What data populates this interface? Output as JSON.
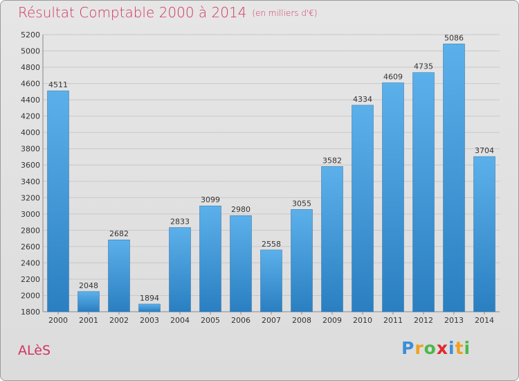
{
  "header": {
    "title": "Résultat Comptable 2000 à 2014",
    "subtitle": "(en milliers d'€)"
  },
  "footer": {
    "city": "ALèS",
    "logo": [
      "P",
      "r",
      "o",
      "x",
      "i",
      "t",
      "i"
    ]
  },
  "colors": {
    "title": "#d2355f",
    "bar_top": "#5cb0ea",
    "bar_bottom": "#2a7fc1",
    "grid": "#c8c8c8",
    "logo": [
      "#3a8fd8",
      "#f0a020",
      "#4cb848",
      "#e0282e",
      "#3a8fd8",
      "#f0a020",
      "#4cb848"
    ]
  },
  "chart_data": {
    "type": "bar",
    "title": "Résultat Comptable 2000 à 2014",
    "subtitle": "(en milliers d'€)",
    "categories": [
      "2000",
      "2001",
      "2002",
      "2003",
      "2004",
      "2005",
      "2006",
      "2007",
      "2008",
      "2009",
      "2010",
      "2011",
      "2012",
      "2013",
      "2014"
    ],
    "values": [
      4511,
      2048,
      2682,
      1894,
      2833,
      3099,
      2980,
      2558,
      3055,
      3582,
      4334,
      4609,
      4735,
      5086,
      3704
    ],
    "ylim": [
      1800,
      5200
    ],
    "yticks": [
      1800,
      2000,
      2200,
      2400,
      2600,
      2800,
      3000,
      3200,
      3400,
      3600,
      3800,
      4000,
      4200,
      4400,
      4600,
      4800,
      5000,
      5200
    ],
    "grid": true,
    "data_labels": true
  }
}
